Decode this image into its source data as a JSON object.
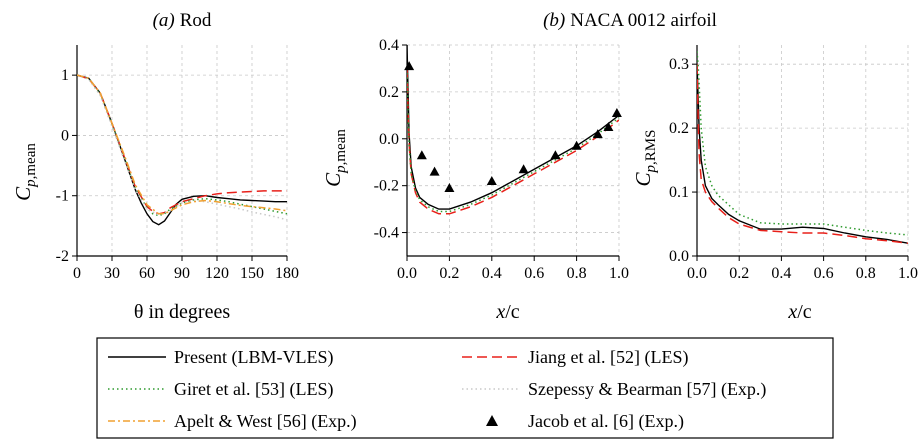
{
  "panel_titles": {
    "a_prefix": "(a)",
    "a_name": "Rod",
    "b_prefix": "(b)",
    "b_name": "NACA 0012 airfoil"
  },
  "axis_labels": {
    "a_x": "θ in degrees",
    "a_y": "C",
    "a_y_sub": "p,",
    "a_y_sub2": "mean",
    "b_x_x": "x",
    "b_x_c": "/c",
    "b_y": "C",
    "b_y_sub": "p,",
    "b_y_sub2": "mean",
    "c_x_x": "x",
    "c_x_c": "/c",
    "c_y": "C",
    "c_y_sub": "p,",
    "c_y_sub2": "RMS"
  },
  "legend": [
    {
      "label": "Present (LBM-VLES)",
      "color": "#000000",
      "style": "solid"
    },
    {
      "label": "Jiang et al. [52] (LES)",
      "color": "#e8201a",
      "style": "dashed"
    },
    {
      "label": "Giret et al. [53] (LES)",
      "color": "#2e9a2e",
      "style": "dotted"
    },
    {
      "label": "Szepessy & Bearman [57] (Exp.)",
      "color": "#c8c8c8",
      "style": "dotted"
    },
    {
      "label": "Apelt & West [56] (Exp.)",
      "color": "#f0a030",
      "style": "dashdot"
    },
    {
      "label": "Jacob et al. [6] (Exp.)",
      "color": "#000000",
      "style": "triangle"
    }
  ],
  "chart_data": [
    {
      "type": "line",
      "panel": "(a) Rod",
      "xlabel": "θ in degrees",
      "ylabel": "Cp,mean",
      "xlim": [
        0,
        180
      ],
      "ylim": [
        -2,
        1.5
      ],
      "xticks": [
        0,
        30,
        60,
        90,
        120,
        150,
        180
      ],
      "yticks": [
        -2,
        -1,
        0,
        1
      ],
      "grid": true,
      "series": [
        {
          "name": "Present (LBM-VLES)",
          "x": [
            0,
            10,
            20,
            30,
            40,
            50,
            55,
            60,
            65,
            70,
            75,
            80,
            85,
            90,
            100,
            110,
            120,
            130,
            140,
            150,
            160,
            170,
            180
          ],
          "y": [
            1,
            0.95,
            0.7,
            0.2,
            -0.35,
            -0.9,
            -1.12,
            -1.3,
            -1.43,
            -1.48,
            -1.42,
            -1.28,
            -1.14,
            -1.06,
            -1.01,
            -1.0,
            -1.03,
            -1.05,
            -1.07,
            -1.08,
            -1.09,
            -1.1,
            -1.1
          ]
        },
        {
          "name": "Jiang et al. [52] (LES)",
          "x": [
            0,
            10,
            20,
            30,
            40,
            50,
            60,
            65,
            70,
            75,
            80,
            90,
            100,
            110,
            120,
            130,
            140,
            150,
            160,
            170,
            180
          ],
          "y": [
            1,
            0.94,
            0.7,
            0.2,
            -0.33,
            -0.85,
            -1.18,
            -1.26,
            -1.3,
            -1.28,
            -1.2,
            -1.1,
            -1.05,
            -1.0,
            -0.97,
            -0.95,
            -0.94,
            -0.93,
            -0.92,
            -0.92,
            -0.92
          ]
        },
        {
          "name": "Giret et al. [53] (LES)",
          "x": [
            0,
            10,
            20,
            30,
            40,
            50,
            60,
            65,
            70,
            75,
            80,
            90,
            100,
            110,
            120,
            130,
            140,
            150,
            160,
            170,
            180
          ],
          "y": [
            1,
            0.94,
            0.68,
            0.18,
            -0.34,
            -0.88,
            -1.2,
            -1.3,
            -1.33,
            -1.3,
            -1.22,
            -1.12,
            -1.07,
            -1.05,
            -1.07,
            -1.1,
            -1.14,
            -1.18,
            -1.22,
            -1.26,
            -1.3
          ]
        },
        {
          "name": "Szepessy & Bearman [57] (Exp.)",
          "x": [
            0,
            10,
            20,
            30,
            40,
            50,
            60,
            70,
            80,
            90,
            100,
            110,
            120,
            130,
            140,
            150,
            160,
            170,
            180
          ],
          "y": [
            1,
            0.93,
            0.66,
            0.15,
            -0.38,
            -0.9,
            -1.22,
            -1.32,
            -1.25,
            -1.12,
            -1.08,
            -1.1,
            -1.14,
            -1.18,
            -1.22,
            -1.27,
            -1.31,
            -1.35,
            -1.4
          ]
        },
        {
          "name": "Apelt & West [56] (Exp.)",
          "x": [
            0,
            10,
            20,
            30,
            40,
            50,
            60,
            70,
            75,
            80,
            90,
            100,
            110,
            120,
            130,
            140,
            150,
            160,
            170,
            180
          ],
          "y": [
            1,
            0.95,
            0.7,
            0.2,
            -0.3,
            -0.82,
            -1.15,
            -1.3,
            -1.3,
            -1.25,
            -1.15,
            -1.1,
            -1.08,
            -1.1,
            -1.13,
            -1.16,
            -1.18,
            -1.2,
            -1.22,
            -1.25
          ]
        }
      ]
    },
    {
      "type": "line",
      "panel": "(b) NACA 0012 airfoil",
      "xlabel": "x/c",
      "ylabel": "Cp,mean",
      "xlim": [
        0,
        1
      ],
      "ylim": [
        -0.5,
        0.4
      ],
      "xticks": [
        0.0,
        0.2,
        0.4,
        0.6,
        0.8,
        1.0
      ],
      "yticks": [
        -0.4,
        -0.2,
        0.0,
        0.2,
        0.4
      ],
      "grid": true,
      "series": [
        {
          "name": "Present (LBM-VLES)",
          "x": [
            0,
            0.005,
            0.01,
            0.02,
            0.04,
            0.06,
            0.1,
            0.15,
            0.2,
            0.3,
            0.4,
            0.5,
            0.6,
            0.7,
            0.8,
            0.9,
            1.0
          ],
          "y": [
            0.4,
            0.2,
            0.02,
            -0.12,
            -0.21,
            -0.25,
            -0.28,
            -0.3,
            -0.3,
            -0.27,
            -0.23,
            -0.18,
            -0.13,
            -0.08,
            -0.03,
            0.03,
            0.1
          ]
        },
        {
          "name": "Jiang et al. [52] (LES)",
          "x": [
            0,
            0.005,
            0.01,
            0.02,
            0.04,
            0.06,
            0.1,
            0.15,
            0.2,
            0.3,
            0.4,
            0.5,
            0.6,
            0.7,
            0.8,
            0.9,
            1.0
          ],
          "y": [
            0.3,
            0.12,
            -0.02,
            -0.15,
            -0.23,
            -0.27,
            -0.3,
            -0.32,
            -0.32,
            -0.29,
            -0.25,
            -0.2,
            -0.15,
            -0.1,
            -0.05,
            0.01,
            0.08
          ]
        },
        {
          "name": "Giret et al. [53] (LES)",
          "x": [
            0,
            0.005,
            0.01,
            0.02,
            0.04,
            0.06,
            0.1,
            0.15,
            0.2,
            0.3,
            0.4,
            0.5,
            0.6,
            0.7,
            0.8,
            0.9,
            1.0
          ],
          "y": [
            0.3,
            0.1,
            -0.03,
            -0.15,
            -0.22,
            -0.26,
            -0.29,
            -0.31,
            -0.31,
            -0.28,
            -0.24,
            -0.19,
            -0.14,
            -0.09,
            -0.04,
            0.02,
            0.09
          ]
        },
        {
          "name": "Jacob et al. [6] (Exp.)",
          "markers": "triangle",
          "x": [
            0.01,
            0.07,
            0.13,
            0.2,
            0.4,
            0.55,
            0.7,
            0.8,
            0.9,
            0.95,
            0.99
          ],
          "y": [
            0.31,
            -0.07,
            -0.14,
            -0.21,
            -0.18,
            -0.13,
            -0.07,
            -0.03,
            0.02,
            0.05,
            0.11
          ]
        }
      ]
    },
    {
      "type": "line",
      "panel": "(b) NACA 0012 airfoil",
      "xlabel": "x/c",
      "ylabel": "Cp,RMS",
      "xlim": [
        0,
        1
      ],
      "ylim": [
        0,
        0.33
      ],
      "xticks": [
        0.0,
        0.2,
        0.4,
        0.6,
        0.8,
        1.0
      ],
      "yticks": [
        0.0,
        0.1,
        0.2,
        0.3
      ],
      "grid": true,
      "series": [
        {
          "name": "Present (LBM-VLES)",
          "x": [
            0,
            0.005,
            0.01,
            0.02,
            0.04,
            0.07,
            0.1,
            0.15,
            0.2,
            0.3,
            0.4,
            0.5,
            0.6,
            0.7,
            0.8,
            0.9,
            1.0
          ],
          "y": [
            0.3,
            0.25,
            0.2,
            0.15,
            0.11,
            0.09,
            0.08,
            0.065,
            0.055,
            0.042,
            0.042,
            0.045,
            0.043,
            0.036,
            0.03,
            0.026,
            0.02
          ]
        },
        {
          "name": "Jiang et al. [52] (LES)",
          "x": [
            0,
            0.005,
            0.01,
            0.02,
            0.04,
            0.07,
            0.1,
            0.15,
            0.2,
            0.3,
            0.4,
            0.5,
            0.6,
            0.7,
            0.8,
            0.9,
            1.0
          ],
          "y": [
            0.3,
            0.22,
            0.16,
            0.12,
            0.1,
            0.085,
            0.075,
            0.06,
            0.05,
            0.04,
            0.038,
            0.036,
            0.036,
            0.032,
            0.027,
            0.024,
            0.02
          ]
        },
        {
          "name": "Giret et al. [53] (LES)",
          "x": [
            0,
            0.005,
            0.01,
            0.02,
            0.04,
            0.07,
            0.1,
            0.15,
            0.2,
            0.3,
            0.4,
            0.5,
            0.6,
            0.7,
            0.8,
            0.9,
            1.0
          ],
          "y": [
            0.32,
            0.3,
            0.27,
            0.2,
            0.14,
            0.11,
            0.095,
            0.08,
            0.065,
            0.052,
            0.05,
            0.05,
            0.05,
            0.045,
            0.04,
            0.036,
            0.033
          ]
        }
      ]
    }
  ]
}
